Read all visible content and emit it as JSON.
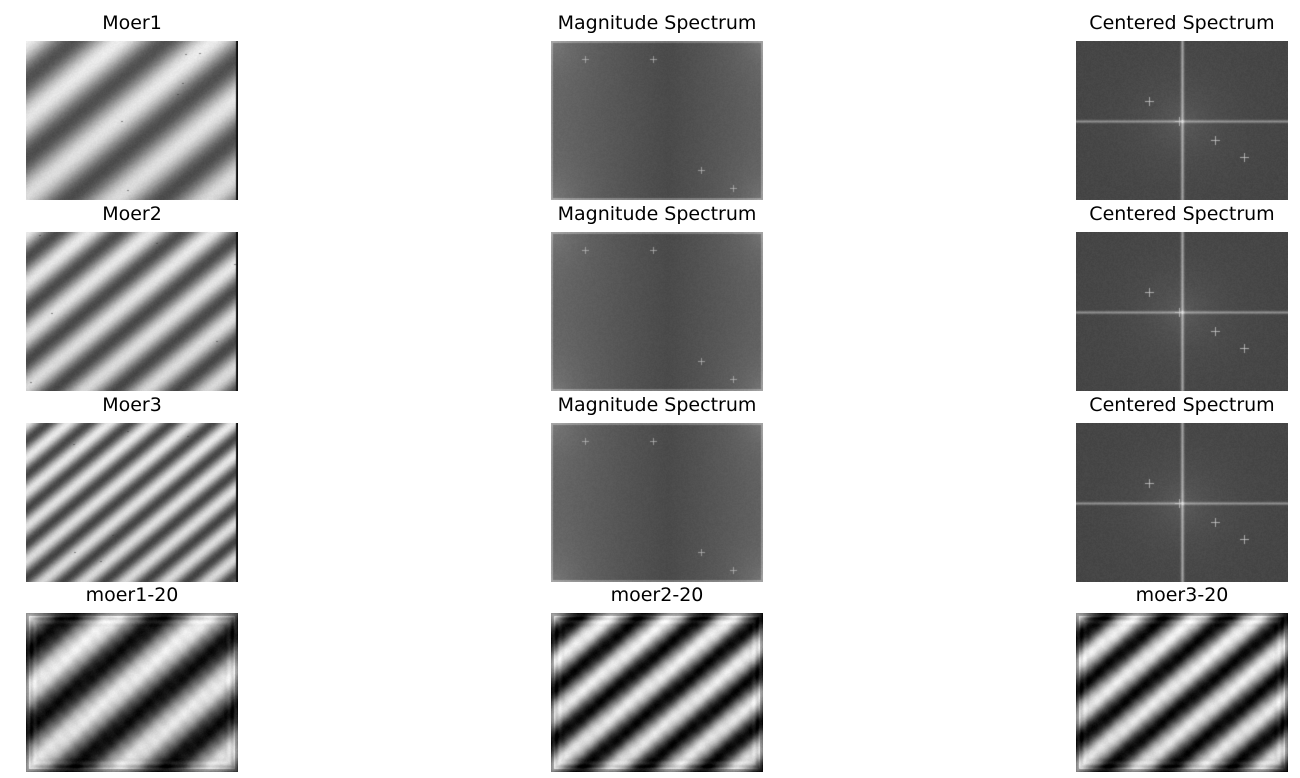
{
  "figure": {
    "panels": [
      {
        "id": "moer1-original",
        "title": "Moer1",
        "kind": "stripes",
        "stripe_count": 4,
        "rings": false,
        "lo": 0.32,
        "hi": 0.93,
        "right_edge": true,
        "specks": true
      },
      {
        "id": "moer1-magnitude",
        "title": "Magnitude Spectrum",
        "kind": "magnitude"
      },
      {
        "id": "moer1-centered",
        "title": "Centered Spectrum",
        "kind": "centered"
      },
      {
        "id": "moer2-original",
        "title": "Moer2",
        "kind": "stripes",
        "stripe_count": 6,
        "rings": false,
        "lo": 0.3,
        "hi": 0.92,
        "right_edge": true,
        "specks": true
      },
      {
        "id": "moer2-magnitude",
        "title": "Magnitude Spectrum",
        "kind": "magnitude"
      },
      {
        "id": "moer2-centered",
        "title": "Centered Spectrum",
        "kind": "centered"
      },
      {
        "id": "moer3-original",
        "title": "Moer3",
        "kind": "stripes",
        "stripe_count": 9,
        "rings": false,
        "lo": 0.28,
        "hi": 0.92,
        "right_edge": true,
        "specks": true
      },
      {
        "id": "moer3-magnitude",
        "title": "Magnitude Spectrum",
        "kind": "magnitude"
      },
      {
        "id": "moer3-centered",
        "title": "Centered Spectrum",
        "kind": "centered"
      },
      {
        "id": "moer1-20-filtered",
        "title": "moer1-20",
        "kind": "stripes",
        "stripe_count": 4,
        "rings": true,
        "lo": 0.05,
        "hi": 0.95,
        "right_edge": false,
        "specks": false
      },
      {
        "id": "moer2-20-filtered",
        "title": "moer2-20",
        "kind": "stripes",
        "stripe_count": 6,
        "rings": true,
        "lo": 0.03,
        "hi": 0.95,
        "right_edge": false,
        "specks": false
      },
      {
        "id": "moer3-20-filtered",
        "title": "moer3-20",
        "kind": "stripes",
        "stripe_count": 6,
        "rings": true,
        "lo": 0.03,
        "hi": 0.95,
        "right_edge": false,
        "specks": false
      }
    ]
  }
}
